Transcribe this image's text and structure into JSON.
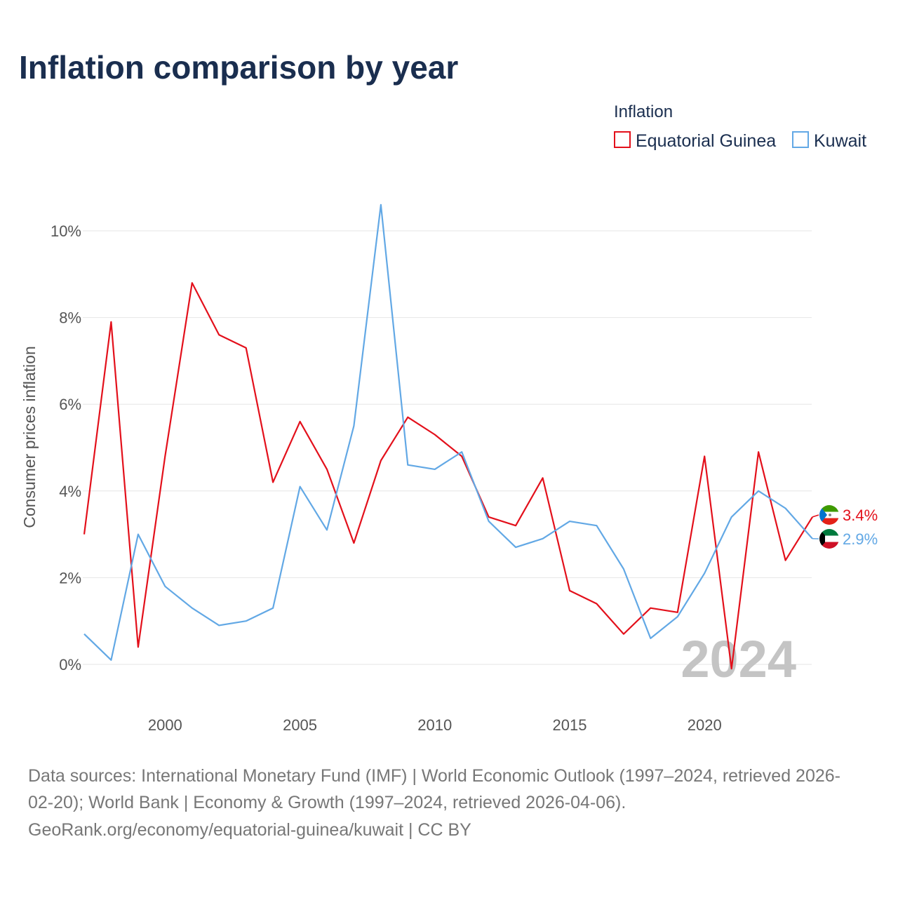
{
  "title": "Inflation comparison by year",
  "legend": {
    "title": "Inflation",
    "items": [
      {
        "name": "Equatorial Guinea",
        "color": "#e3101b"
      },
      {
        "name": "Kuwait",
        "color": "#62a8e5"
      }
    ]
  },
  "chart_data": {
    "type": "line",
    "ylabel": "Consumer prices inflation",
    "ylim": [
      -1,
      10.6
    ],
    "yticks": [
      0,
      2,
      4,
      6,
      8,
      10
    ],
    "ytick_labels": [
      "0%",
      "2%",
      "4%",
      "6%",
      "8%",
      "10%"
    ],
    "xlim": [
      1997,
      2024
    ],
    "xticks": [
      2000,
      2005,
      2010,
      2015,
      2020
    ],
    "xtick_labels": [
      "2000",
      "2005",
      "2010",
      "2015",
      "2020"
    ],
    "x": [
      1997,
      1998,
      1999,
      2000,
      2001,
      2002,
      2003,
      2004,
      2005,
      2006,
      2007,
      2008,
      2009,
      2010,
      2011,
      2012,
      2013,
      2014,
      2015,
      2016,
      2017,
      2018,
      2019,
      2020,
      2021,
      2022,
      2023,
      2024
    ],
    "series": [
      {
        "name": "Equatorial Guinea",
        "color": "#e3101b",
        "end_label": "3.4%",
        "values": [
          3.0,
          7.9,
          0.4,
          4.8,
          8.8,
          7.6,
          7.3,
          4.2,
          5.6,
          4.5,
          2.8,
          4.7,
          5.7,
          5.3,
          4.8,
          3.4,
          3.2,
          4.3,
          1.7,
          1.4,
          0.7,
          1.3,
          1.2,
          4.8,
          -0.1,
          4.9,
          2.4,
          3.4
        ]
      },
      {
        "name": "Kuwait",
        "color": "#62a8e5",
        "end_label": "2.9%",
        "values": [
          0.7,
          0.1,
          3.0,
          1.8,
          1.3,
          0.9,
          1.0,
          1.3,
          4.1,
          3.1,
          5.5,
          10.6,
          4.6,
          4.5,
          4.9,
          3.3,
          2.7,
          2.9,
          3.3,
          3.2,
          2.2,
          0.6,
          1.1,
          2.1,
          3.4,
          4.0,
          3.6,
          2.9
        ]
      }
    ],
    "watermark_year": "2024"
  },
  "source": {
    "line1": "Data sources: International Monetary Fund (IMF) | World Economic Outlook (1997–2024, retrieved 2026-",
    "line2": "02-20); World Bank | Economy & Growth (1997–2024, retrieved 2026-04-06).",
    "line3": "GeoRank.org/economy/equatorial-guinea/kuwait | CC BY"
  }
}
